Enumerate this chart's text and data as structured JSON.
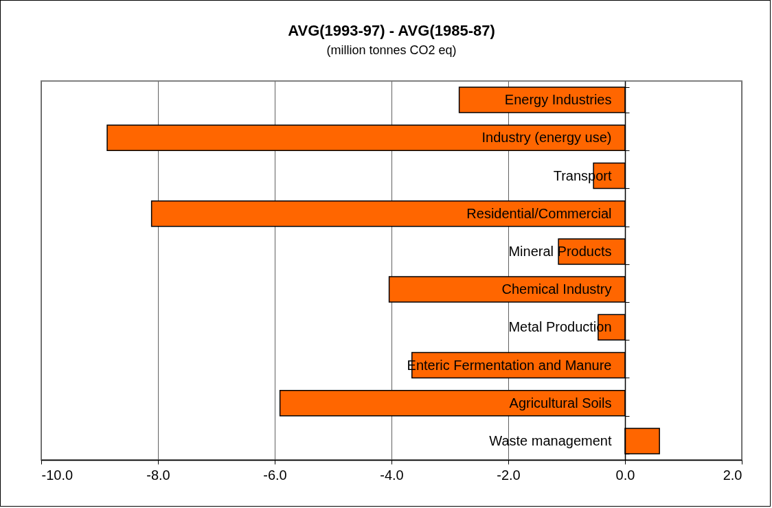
{
  "chart_data": {
    "type": "bar",
    "orientation": "horizontal",
    "title": "AVG(1993-97) - AVG(1985-87)",
    "subtitle": "(million tonnes CO2 eq)",
    "categories": [
      "Energy Industries",
      "Industry (energy use)",
      "Transport",
      "Residential/Commercial",
      "Mineral Products",
      "Chemical Industry",
      "Metal Production",
      "Enteric Fermentation and Manure",
      "Agricultural Soils",
      "Waste management"
    ],
    "values": [
      -2.84,
      -8.87,
      -0.54,
      -8.11,
      -1.14,
      -4.04,
      -0.46,
      -3.65,
      -5.91,
      0.59
    ],
    "color": "#ff6600",
    "xlim": [
      -10,
      2
    ],
    "xticks": [
      {
        "value": -10,
        "label": "-10.0"
      },
      {
        "value": -8,
        "label": "-8.0"
      },
      {
        "value": -6,
        "label": "-6.0"
      },
      {
        "value": -4,
        "label": "-4.0"
      },
      {
        "value": -2,
        "label": "-2.0"
      },
      {
        "value": 0,
        "label": "0.0"
      },
      {
        "value": 2,
        "label": "2.0"
      }
    ],
    "grid": "x"
  }
}
